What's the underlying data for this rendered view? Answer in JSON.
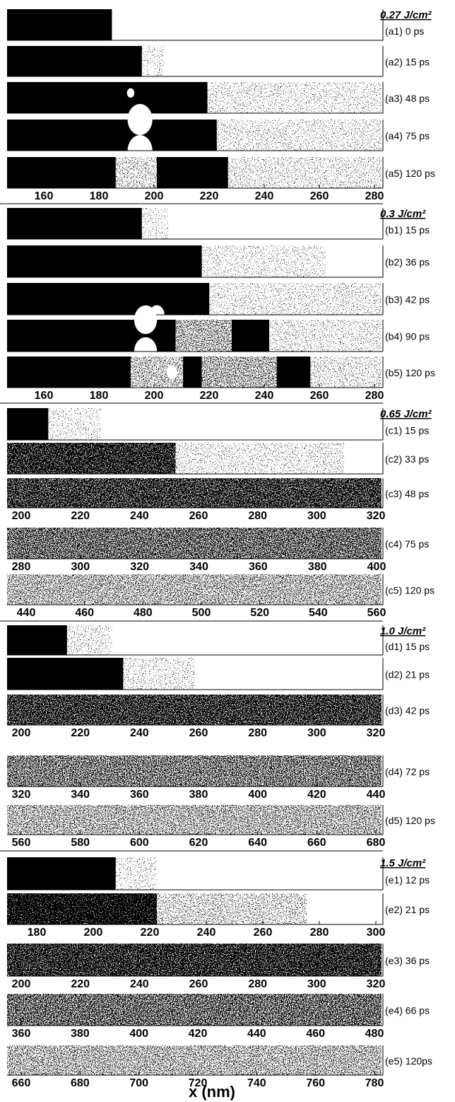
{
  "groups": [
    {
      "fluence": "0.27 J/cm²",
      "panels": [
        {
          "label": "(a1)  0 ps"
        },
        {
          "label": "(a2) 15 ps"
        },
        {
          "label": "(a3) 48 ps"
        },
        {
          "label": "(a4) 75 ps"
        },
        {
          "label": "(a5) 120 ps",
          "ticks": [
            160,
            180,
            200,
            220,
            240,
            260,
            280
          ]
        }
      ]
    },
    {
      "fluence": "0.3 J/cm²",
      "panels": [
        {
          "label": "(b1) 15 ps"
        },
        {
          "label": "(b2) 36 ps"
        },
        {
          "label": "(b3) 42 ps"
        },
        {
          "label": "(b4) 90 ps"
        },
        {
          "label": "(b5) 120 ps",
          "ticks": [
            160,
            180,
            200,
            220,
            240,
            260,
            280
          ]
        }
      ]
    },
    {
      "fluence": "0.65 J/cm²",
      "panels": [
        {
          "label": "(c1) 15 ps"
        },
        {
          "label": "(c2) 33 ps"
        },
        {
          "label": "(c3) 48 ps",
          "ticks": [
            200,
            220,
            240,
            260,
            280,
            300,
            320
          ]
        },
        {
          "label": "(c4) 75 ps",
          "ticks": [
            280,
            300,
            320,
            340,
            360,
            380,
            400
          ]
        },
        {
          "label": "(c5) 120 ps",
          "ticks": [
            440,
            460,
            480,
            500,
            520,
            540,
            560
          ]
        }
      ]
    },
    {
      "fluence": "1.0 J/cm²",
      "panels": [
        {
          "label": "(d1) 15 ps"
        },
        {
          "label": "(d2) 21 ps"
        },
        {
          "label": "(d3) 42 ps",
          "ticks": [
            200,
            220,
            240,
            260,
            280,
            300,
            320
          ]
        },
        {
          "label": "(d4) 72 ps",
          "ticks": [
            320,
            340,
            360,
            380,
            400,
            420,
            440
          ]
        },
        {
          "label": "(d5) 120 ps",
          "ticks": [
            560,
            580,
            600,
            620,
            640,
            660,
            680
          ]
        }
      ]
    },
    {
      "fluence": "1.5 J/cm²",
      "panels": [
        {
          "label": "(e1) 12 ps"
        },
        {
          "label": "(e2) 21 ps",
          "ticks": [
            180,
            200,
            220,
            240,
            260,
            280,
            300
          ]
        },
        {
          "label": "(e3) 36 ps",
          "ticks": [
            200,
            220,
            240,
            260,
            280,
            300,
            320
          ]
        },
        {
          "label": "(e4) 66 ps",
          "ticks": [
            360,
            380,
            400,
            420,
            440,
            460,
            480
          ]
        },
        {
          "label": "(e5) 120ps",
          "ticks": [
            660,
            680,
            700,
            720,
            740,
            760,
            780
          ]
        }
      ]
    }
  ],
  "x_label": "x (nm)"
}
